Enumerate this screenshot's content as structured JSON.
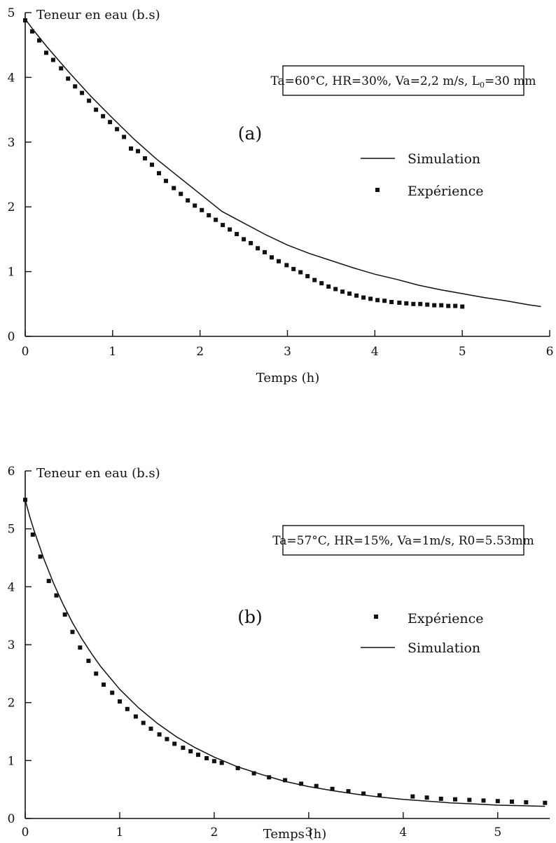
{
  "chart_data": [
    {
      "type": "line",
      "panel_label": "(a)",
      "ylabel": "Teneur en eau (b.s)",
      "xlabel": "Temps (h)",
      "xlim": [
        0,
        6
      ],
      "ylim": [
        0,
        5
      ],
      "xticks": [
        0,
        1,
        2,
        3,
        4,
        5,
        6
      ],
      "yticks": [
        0,
        1,
        2,
        3,
        4,
        5
      ],
      "annotation_parts": [
        "Ta=60°C, HR=30%, Va=2,2 m/s, L",
        "0",
        "=30 mm"
      ],
      "legend_position": "right",
      "legend": [
        {
          "name": "Simulation",
          "style": "line"
        },
        {
          "name": "Expérience",
          "style": "marker"
        }
      ],
      "series": [
        {
          "name": "Simulation",
          "style": "line",
          "x": [
            0,
            0.1,
            0.25,
            0.5,
            0.75,
            1.0,
            1.25,
            1.5,
            1.75,
            2.0,
            2.25,
            2.5,
            2.75,
            3.0,
            3.25,
            3.5,
            3.75,
            4.0,
            4.25,
            4.5,
            4.75,
            5.0,
            5.25,
            5.5,
            5.75,
            5.9
          ],
          "y": [
            4.9,
            4.72,
            4.47,
            4.08,
            3.71,
            3.37,
            3.04,
            2.74,
            2.47,
            2.2,
            1.93,
            1.75,
            1.57,
            1.41,
            1.28,
            1.17,
            1.06,
            0.96,
            0.88,
            0.79,
            0.72,
            0.66,
            0.6,
            0.55,
            0.49,
            0.46
          ]
        },
        {
          "name": "Expérience",
          "style": "marker",
          "x": [
            0,
            0.08,
            0.16,
            0.24,
            0.32,
            0.41,
            0.49,
            0.57,
            0.65,
            0.73,
            0.81,
            0.89,
            0.97,
            1.05,
            1.13,
            1.21,
            1.29,
            1.37,
            1.45,
            1.53,
            1.61,
            1.7,
            1.78,
            1.86,
            1.94,
            2.02,
            2.1,
            2.18,
            2.26,
            2.34,
            2.42,
            2.5,
            2.58,
            2.66,
            2.74,
            2.82,
            2.9,
            2.99,
            3.07,
            3.15,
            3.23,
            3.31,
            3.39,
            3.47,
            3.55,
            3.63,
            3.71,
            3.79,
            3.87,
            3.95,
            4.03,
            4.11,
            4.19,
            4.28,
            4.36,
            4.44,
            4.52,
            4.6,
            4.68,
            4.76,
            4.84,
            4.92,
            5.0
          ],
          "y": [
            4.88,
            4.71,
            4.57,
            4.38,
            4.27,
            4.14,
            3.98,
            3.86,
            3.76,
            3.64,
            3.5,
            3.4,
            3.31,
            3.2,
            3.08,
            2.9,
            2.86,
            2.75,
            2.65,
            2.52,
            2.4,
            2.29,
            2.2,
            2.1,
            2.02,
            1.95,
            1.87,
            1.8,
            1.72,
            1.65,
            1.58,
            1.5,
            1.44,
            1.36,
            1.3,
            1.22,
            1.16,
            1.1,
            1.04,
            0.99,
            0.93,
            0.87,
            0.82,
            0.77,
            0.73,
            0.69,
            0.66,
            0.63,
            0.6,
            0.58,
            0.56,
            0.55,
            0.53,
            0.52,
            0.51,
            0.5,
            0.5,
            0.49,
            0.48,
            0.48,
            0.47,
            0.47,
            0.46
          ]
        }
      ]
    },
    {
      "type": "line",
      "panel_label": "(b)",
      "ylabel": "Teneur en eau (b.s)",
      "xlabel": "Temps (h)",
      "xlim": [
        0,
        5.55
      ],
      "ylim": [
        0,
        6
      ],
      "xticks": [
        0,
        1,
        2,
        3,
        4,
        5
      ],
      "yticks": [
        0,
        1,
        2,
        3,
        4,
        5,
        6
      ],
      "annotation_parts": [
        "Ta=57°C, HR=15%, Va=1m/s, R0=5.53mm"
      ],
      "legend_position": "right",
      "legend": [
        {
          "name": "Expérience",
          "style": "marker"
        },
        {
          "name": "Simulation",
          "style": "line"
        }
      ],
      "series": [
        {
          "name": "Simulation",
          "style": "line",
          "x": [
            0,
            0.05,
            0.1,
            0.2,
            0.3,
            0.4,
            0.5,
            0.6,
            0.7,
            0.8,
            1.0,
            1.2,
            1.4,
            1.6,
            1.8,
            2.0,
            2.25,
            2.5,
            2.75,
            3.0,
            3.25,
            3.5,
            3.75,
            4.0,
            4.25,
            4.5,
            4.75,
            5.0,
            5.25,
            5.5
          ],
          "y": [
            5.5,
            5.2,
            4.94,
            4.47,
            4.06,
            3.7,
            3.38,
            3.1,
            2.85,
            2.62,
            2.23,
            1.91,
            1.64,
            1.41,
            1.22,
            1.06,
            0.89,
            0.76,
            0.64,
            0.55,
            0.48,
            0.42,
            0.37,
            0.33,
            0.3,
            0.27,
            0.25,
            0.23,
            0.22,
            0.21
          ]
        },
        {
          "name": "Expérience",
          "style": "marker",
          "x": [
            0,
            0.08,
            0.16,
            0.25,
            0.33,
            0.42,
            0.5,
            0.58,
            0.67,
            0.75,
            0.83,
            0.92,
            1.0,
            1.08,
            1.17,
            1.25,
            1.33,
            1.42,
            1.5,
            1.58,
            1.67,
            1.75,
            1.83,
            1.92,
            2.0,
            2.08,
            2.25,
            2.42,
            2.58,
            2.75,
            2.92,
            3.08,
            3.25,
            3.42,
            3.58,
            3.75,
            4.1,
            4.25,
            4.4,
            4.55,
            4.7,
            4.85,
            5.0,
            5.15,
            5.3,
            5.5
          ],
          "y": [
            5.5,
            4.9,
            4.52,
            4.1,
            3.85,
            3.52,
            3.22,
            2.95,
            2.72,
            2.5,
            2.31,
            2.17,
            2.02,
            1.89,
            1.76,
            1.65,
            1.55,
            1.45,
            1.37,
            1.29,
            1.22,
            1.16,
            1.1,
            1.04,
            0.99,
            0.96,
            0.87,
            0.78,
            0.71,
            0.66,
            0.6,
            0.56,
            0.51,
            0.47,
            0.43,
            0.4,
            0.38,
            0.36,
            0.34,
            0.33,
            0.32,
            0.31,
            0.3,
            0.29,
            0.28,
            0.27
          ]
        }
      ]
    }
  ]
}
